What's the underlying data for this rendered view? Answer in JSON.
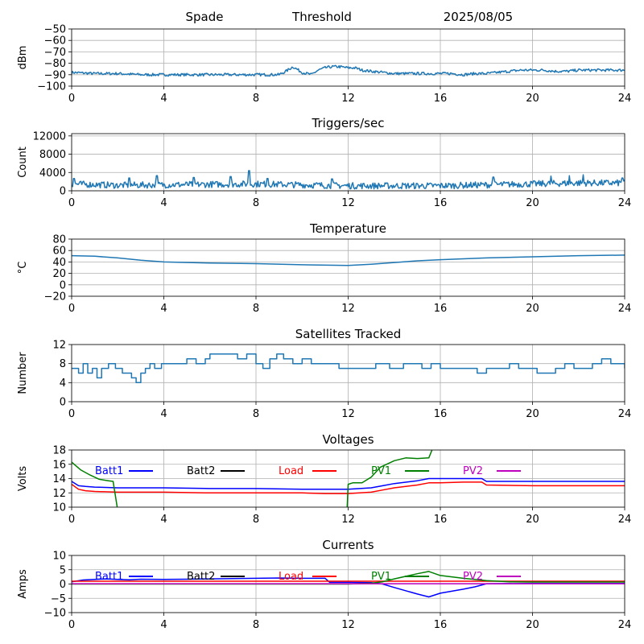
{
  "header": {
    "station": "Spade",
    "label": "Threshold",
    "date": "2025/08/05"
  },
  "x_ticks": [
    "0",
    "4",
    "8",
    "12",
    "16",
    "20",
    "24"
  ],
  "chart_data": [
    {
      "id": "threshold",
      "type": "line",
      "title": "",
      "ylabel": "dBm",
      "xlim": [
        0,
        24
      ],
      "ylim": [
        -100,
        -50
      ],
      "yticks": [
        -50,
        -60,
        -70,
        -80,
        -90,
        -100
      ],
      "ytick_labels": [
        "−50",
        "−60",
        "−70",
        "−80",
        "−90",
        "−100"
      ],
      "series": [
        {
          "color": "#1f77b4",
          "x": [
            0,
            1,
            2,
            3,
            4,
            5,
            6,
            7,
            8,
            8.5,
            9,
            9.3,
            9.6,
            10,
            10.4,
            10.7,
            11,
            11.3,
            11.6,
            12,
            12.3,
            12.6,
            13,
            13.5,
            14,
            15,
            16,
            16.5,
            17,
            17.5,
            18,
            18.5,
            19,
            19.5,
            20,
            20.5,
            21,
            21.5,
            22,
            22.5,
            23,
            23.5,
            24
          ],
          "y": [
            -88,
            -89,
            -89,
            -90,
            -90,
            -90,
            -90,
            -90,
            -90,
            -90,
            -90,
            -87,
            -83,
            -88,
            -90,
            -86,
            -84,
            -83,
            -83,
            -84,
            -84,
            -86,
            -87,
            -88,
            -89,
            -89,
            -89,
            -89,
            -90,
            -89,
            -89,
            -88,
            -87,
            -86,
            -86,
            -86,
            -87,
            -87,
            -86,
            -86,
            -86,
            -86,
            -86
          ],
          "noise": 1.2
        }
      ]
    },
    {
      "id": "triggers",
      "type": "line",
      "title": "Triggers/sec",
      "ylabel": "Count",
      "xlim": [
        0,
        24
      ],
      "ylim": [
        0,
        12500
      ],
      "yticks": [
        0,
        4000,
        8000,
        12000
      ],
      "ytick_labels": [
        "0",
        "4000",
        "8000",
        "12000"
      ],
      "series": [
        {
          "color": "#1f77b4",
          "x": [
            0,
            2,
            4,
            6,
            8,
            10,
            12,
            14,
            16,
            18,
            20,
            22,
            24
          ],
          "y": [
            1500,
            1200,
            1300,
            1400,
            1500,
            1300,
            1100,
            1100,
            1100,
            1300,
            1500,
            1700,
            1700
          ],
          "noise": 700,
          "spikes": [
            [
              0.1,
              2700
            ],
            [
              2.5,
              2800
            ],
            [
              3.7,
              3300
            ],
            [
              5.3,
              2900
            ],
            [
              6.9,
              3100
            ],
            [
              7.7,
              4400
            ],
            [
              8.5,
              2700
            ],
            [
              11.3,
              2600
            ],
            [
              18.3,
              3000
            ],
            [
              20.8,
              3200
            ],
            [
              21.6,
              3300
            ],
            [
              22.2,
              3500
            ],
            [
              23.9,
              2800
            ]
          ]
        }
      ]
    },
    {
      "id": "temperature",
      "type": "line",
      "title": "Temperature",
      "ylabel": "°C",
      "xlim": [
        0,
        24
      ],
      "ylim": [
        -20,
        80
      ],
      "yticks": [
        80,
        60,
        40,
        20,
        0,
        -20
      ],
      "ytick_labels": [
        "80",
        "60",
        "40",
        "20",
        "0",
        "−20"
      ],
      "series": [
        {
          "color": "#1f77b4",
          "x": [
            0,
            1,
            2,
            3,
            4,
            6,
            8,
            10,
            12,
            13,
            14,
            15,
            16,
            18,
            20,
            22,
            24
          ],
          "y": [
            51,
            50,
            47,
            43,
            40,
            38,
            37,
            35,
            34,
            36,
            39,
            42,
            44,
            47,
            49,
            51,
            52
          ],
          "noise": 0
        }
      ]
    },
    {
      "id": "satellites",
      "type": "line",
      "title": "Satellites Tracked",
      "ylabel": "Number",
      "xlim": [
        0,
        24
      ],
      "ylim": [
        0,
        12
      ],
      "yticks": [
        0,
        4,
        8,
        12
      ],
      "ytick_labels": [
        "0",
        "4",
        "8",
        "12"
      ],
      "series": [
        {
          "color": "#1f77b4",
          "x": [
            0,
            0.3,
            0.5,
            0.7,
            0.9,
            1.1,
            1.3,
            1.6,
            1.9,
            2.2,
            2.6,
            2.8,
            3.0,
            3.2,
            3.4,
            3.6,
            3.9,
            4.2,
            4.6,
            5.0,
            5.4,
            5.8,
            6.0,
            6.4,
            6.8,
            7.2,
            7.6,
            8.0,
            8.3,
            8.6,
            8.9,
            9.2,
            9.6,
            10.0,
            10.4,
            10.8,
            11.2,
            11.6,
            12.0,
            12.6,
            13.2,
            13.8,
            14.4,
            14.8,
            15.2,
            15.6,
            16.0,
            16.6,
            17.2,
            17.6,
            18.0,
            18.6,
            19.0,
            19.4,
            19.8,
            20.2,
            20.6,
            21.0,
            21.4,
            21.8,
            22.2,
            22.6,
            23.0,
            23.4,
            23.8,
            24
          ],
          "y": [
            7,
            6,
            8,
            6,
            7,
            5,
            7,
            8,
            7,
            6,
            5,
            4,
            6,
            7,
            8,
            7,
            8,
            8,
            8,
            9,
            8,
            9,
            10,
            10,
            10,
            9,
            10,
            8,
            7,
            9,
            10,
            9,
            8,
            9,
            8,
            8,
            8,
            7,
            7,
            7,
            8,
            7,
            8,
            8,
            7,
            8,
            7,
            7,
            7,
            6,
            7,
            7,
            8,
            7,
            7,
            6,
            6,
            7,
            8,
            7,
            7,
            8,
            9,
            8,
            8,
            7
          ],
          "step": true
        }
      ]
    },
    {
      "id": "voltages",
      "type": "line",
      "title": "Voltages",
      "ylabel": "Volts",
      "xlim": [
        0,
        24
      ],
      "ylim": [
        10,
        18
      ],
      "yticks": [
        10,
        12,
        14,
        16,
        18
      ],
      "ytick_labels": [
        "10",
        "12",
        "14",
        "16",
        "18"
      ],
      "legend": [
        {
          "label": "Batt1",
          "color": "#0000ff"
        },
        {
          "label": "Batt2",
          "color": "#000000"
        },
        {
          "label": "Load",
          "color": "#ff0000"
        },
        {
          "label": "PV1",
          "color": "#008000"
        },
        {
          "label": "PV2",
          "color": "#bf00bf"
        }
      ],
      "series": [
        {
          "name": "Batt1",
          "color": "#0000ff",
          "x": [
            0,
            0.3,
            0.6,
            1,
            2,
            4,
            6,
            8,
            10,
            11,
            12,
            13,
            13.5,
            14,
            15,
            15.5,
            16,
            17,
            17.8,
            18,
            20,
            22,
            24
          ],
          "y": [
            13.6,
            13.0,
            12.9,
            12.8,
            12.7,
            12.7,
            12.6,
            12.6,
            12.5,
            12.5,
            12.5,
            12.7,
            13.0,
            13.3,
            13.7,
            14.0,
            14.0,
            14.0,
            14.0,
            13.6,
            13.6,
            13.6,
            13.6
          ]
        },
        {
          "name": "Load",
          "color": "#ff0000",
          "x": [
            0,
            0.3,
            0.6,
            1,
            2,
            4,
            6,
            8,
            10,
            11,
            12,
            13,
            13.5,
            14,
            15,
            15.5,
            16,
            17,
            17.8,
            18,
            20,
            22,
            24
          ],
          "y": [
            13.2,
            12.5,
            12.3,
            12.2,
            12.1,
            12.1,
            12.0,
            12.0,
            12.0,
            11.9,
            11.9,
            12.1,
            12.4,
            12.7,
            13.1,
            13.4,
            13.4,
            13.5,
            13.5,
            13.1,
            13.0,
            13.0,
            13.0
          ]
        },
        {
          "name": "PV1",
          "color": "#008000",
          "x": [
            0,
            0.4,
            0.8,
            1.2,
            1.6,
            1.8,
            2.0,
            11.95,
            12.0,
            12.2,
            12.6,
            13.0,
            13.4,
            14.0,
            14.5,
            15.0,
            15.5,
            15.7
          ],
          "y": [
            16.3,
            15.2,
            14.5,
            13.9,
            13.7,
            13.6,
            9.5,
            9.5,
            13.2,
            13.4,
            13.4,
            14.2,
            15.6,
            16.5,
            16.9,
            16.8,
            16.9,
            18.5
          ]
        }
      ]
    },
    {
      "id": "currents",
      "type": "line",
      "title": "Currents",
      "ylabel": "Amps",
      "xlim": [
        0,
        24
      ],
      "ylim": [
        -10,
        10
      ],
      "yticks": [
        10,
        5,
        0,
        -5,
        -10
      ],
      "ytick_labels": [
        "10",
        "5",
        "0",
        "−5",
        "−10"
      ],
      "legend": [
        {
          "label": "Batt1",
          "color": "#0000ff"
        },
        {
          "label": "Batt2",
          "color": "#000000"
        },
        {
          "label": "Load",
          "color": "#ff0000"
        },
        {
          "label": "PV1",
          "color": "#008000"
        },
        {
          "label": "PV2",
          "color": "#bf00bf"
        }
      ],
      "series": [
        {
          "name": "Batt1",
          "color": "#0000ff",
          "x": [
            0,
            0.5,
            1,
            1.5,
            2,
            2.5,
            3,
            4,
            5,
            6,
            7,
            8,
            9,
            10,
            11,
            11.2,
            12,
            13,
            13.5,
            14,
            15,
            15.5,
            16,
            16.5,
            17,
            17.5,
            18,
            20,
            22,
            24
          ],
          "y": [
            0.8,
            1.4,
            1.6,
            1.8,
            1.6,
            1.5,
            1.7,
            1.6,
            1.7,
            1.8,
            1.9,
            2.0,
            2.1,
            2.0,
            2.0,
            0.6,
            0.6,
            0.5,
            0,
            -1.2,
            -3.5,
            -4.5,
            -3.2,
            -2.5,
            -1.8,
            -1.0,
            0.1,
            0.2,
            0.2,
            0.2
          ]
        },
        {
          "name": "Load",
          "color": "#ff0000",
          "x": [
            0,
            4,
            8,
            12,
            16,
            20,
            24
          ],
          "y": [
            1.0,
            1.0,
            1.0,
            1.0,
            1.0,
            1.0,
            1.0
          ]
        },
        {
          "name": "PV1",
          "color": "#008000",
          "x": [
            0,
            12,
            13,
            13.5,
            14,
            15,
            15.5,
            16,
            17,
            18,
            19,
            20,
            24
          ],
          "y": [
            0,
            0,
            0.3,
            0.8,
            1.8,
            3.6,
            4.4,
            3.0,
            2.0,
            1.2,
            0.8,
            0.7,
            0.7
          ]
        },
        {
          "name": "PV2",
          "color": "#bf00bf",
          "x": [
            0,
            24
          ],
          "y": [
            0.1,
            0.1
          ]
        }
      ]
    }
  ]
}
